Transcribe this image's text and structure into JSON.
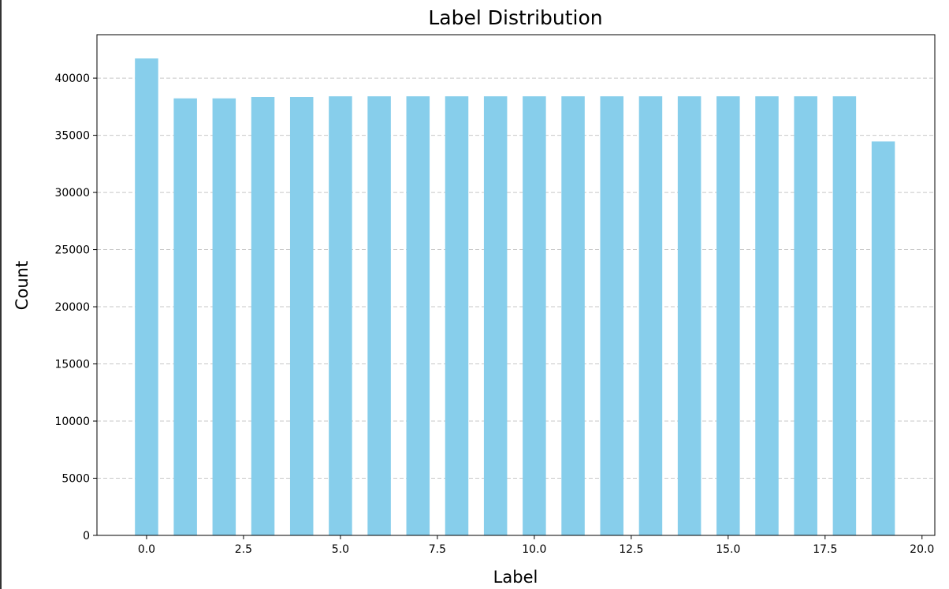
{
  "chart_data": {
    "type": "bar",
    "title": "Label Distribution",
    "xlabel": "Label",
    "ylabel": "Count",
    "x": [
      0,
      1,
      2,
      3,
      4,
      5,
      6,
      7,
      8,
      9,
      10,
      11,
      12,
      13,
      14,
      15,
      16,
      17,
      18,
      19
    ],
    "values": [
      41720,
      38230,
      38230,
      38350,
      38350,
      38410,
      38410,
      38410,
      38410,
      38410,
      38410,
      38410,
      38410,
      38410,
      38410,
      38410,
      38410,
      38410,
      38410,
      34460
    ],
    "bar_width": 0.6,
    "bar_color": "#87ceeb",
    "xlim": [
      -1.28,
      20.33
    ],
    "ylim": [
      0,
      43800
    ],
    "xticks": [
      0,
      2.5,
      5,
      7.5,
      10,
      12.5,
      15,
      17.5,
      20
    ],
    "xtick_labels": [
      "0.0",
      "2.5",
      "5.0",
      "7.5",
      "10.0",
      "12.5",
      "15.0",
      "17.5",
      "20.0"
    ],
    "yticks": [
      0,
      5000,
      10000,
      15000,
      20000,
      25000,
      30000,
      35000,
      40000
    ],
    "ytick_labels": [
      "0",
      "5000",
      "10000",
      "15000",
      "20000",
      "25000",
      "30000",
      "35000",
      "40000"
    ],
    "grid": "y-dashed"
  }
}
